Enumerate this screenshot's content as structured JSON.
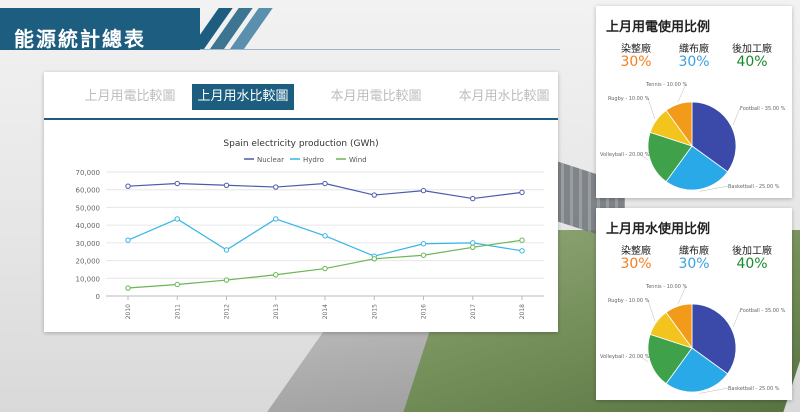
{
  "header": {
    "title": "能源統計總表"
  },
  "tabs": [
    {
      "label": "上月用電比較圖"
    },
    {
      "label": "上月用水比較圖"
    },
    {
      "label": "本月用電比較圖"
    },
    {
      "label": "本月用水比較圖"
    }
  ],
  "active_tab": 1,
  "chart_data": {
    "type": "line",
    "title": "Spain electricity production (GWh)",
    "x": [
      "2010",
      "2011",
      "2012",
      "2013",
      "2014",
      "2015",
      "2016",
      "2017",
      "2018"
    ],
    "ylim": [
      0,
      70000
    ],
    "yticks": [
      "0",
      "10,000",
      "20,000",
      "30,000",
      "40,000",
      "50,000",
      "60,000",
      "70,000"
    ],
    "grid": true,
    "legend_position": "top",
    "series": [
      {
        "name": "Nuclear",
        "color": "#4b5bab",
        "values": [
          62000,
          63500,
          62500,
          61500,
          63500,
          57000,
          59500,
          55000,
          58500
        ]
      },
      {
        "name": "Hydro",
        "color": "#35b6e6",
        "values": [
          31500,
          43500,
          26000,
          43500,
          34000,
          22500,
          29500,
          30000,
          25500
        ]
      },
      {
        "name": "Wind",
        "color": "#6ab655",
        "values": [
          4500,
          6500,
          9000,
          12000,
          15500,
          21000,
          23000,
          27500,
          31500
        ]
      }
    ]
  },
  "pie_cards": [
    {
      "title": "上月用電使用比例",
      "factories": [
        {
          "name": "染整廠",
          "pct": "30%",
          "color": "#f08020"
        },
        {
          "name": "織布廠",
          "pct": "30%",
          "color": "#3aa0e0"
        },
        {
          "name": "後加工廠",
          "pct": "40%",
          "color": "#1a8a2a"
        }
      ],
      "slices": [
        {
          "label": "Football - 35.00 %",
          "value": 35,
          "color": "#3b4aa8"
        },
        {
          "label": "Basketball - 25.00 %",
          "value": 25,
          "color": "#2aa9e8"
        },
        {
          "label": "Volleyball - 20.00 %",
          "value": 20,
          "color": "#3fa24a"
        },
        {
          "label": "Rugby - 10.00 %",
          "value": 10,
          "color": "#f2c41d"
        },
        {
          "label": "Tennis - 10.00 %",
          "value": 10,
          "color": "#f29a1a"
        }
      ]
    },
    {
      "title": "上月用水使用比例",
      "factories": [
        {
          "name": "染整廠",
          "pct": "30%",
          "color": "#f08020"
        },
        {
          "name": "織布廠",
          "pct": "30%",
          "color": "#3aa0e0"
        },
        {
          "name": "後加工廠",
          "pct": "40%",
          "color": "#1a8a2a"
        }
      ],
      "slices": [
        {
          "label": "Football - 35.00 %",
          "value": 35,
          "color": "#3b4aa8"
        },
        {
          "label": "Basketball - 25.00 %",
          "value": 25,
          "color": "#2aa9e8"
        },
        {
          "label": "Volleyball - 20.00 %",
          "value": 20,
          "color": "#3fa24a"
        },
        {
          "label": "Rugby - 10.00 %",
          "value": 10,
          "color": "#f2c41d"
        },
        {
          "label": "Tennis - 10.00 %",
          "value": 10,
          "color": "#f29a1a"
        }
      ]
    }
  ]
}
